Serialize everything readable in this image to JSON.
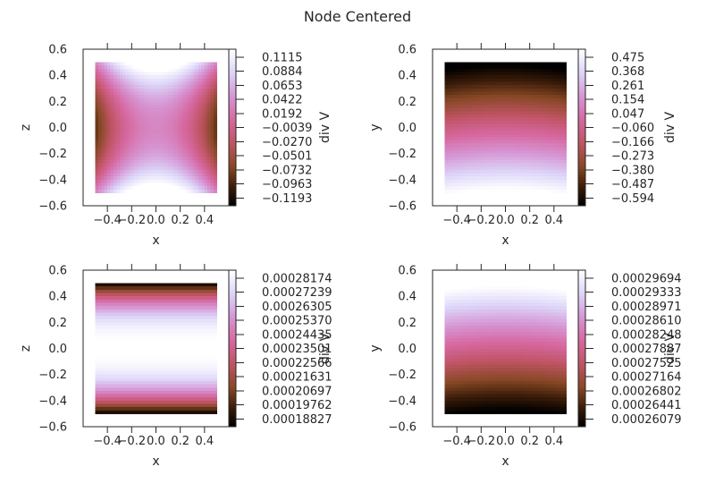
{
  "chart_data": {
    "title": "Node Centered",
    "colormap": "cubehelix",
    "panels": [
      {
        "type": "heatmap",
        "xlabel": "x",
        "ylabel": "z",
        "xlim": [
          -0.6,
          0.6
        ],
        "ylim": [
          -0.6,
          0.6
        ],
        "xticks": [
          -0.4,
          -0.2,
          0.0,
          0.2,
          0.4
        ],
        "xtick_labels": [
          "−0.4",
          "−0.2",
          "0.0",
          "0.2",
          "0.4"
        ],
        "yticks": [
          0.6,
          0.4,
          0.2,
          0.0,
          -0.2,
          -0.4,
          -0.6
        ],
        "ytick_labels": [
          "0.6",
          "0.4",
          "0.2",
          "0.0",
          "−0.2",
          "−0.4",
          "−0.6"
        ],
        "data_extent": [
          -0.5,
          0.5,
          -0.5,
          0.5
        ],
        "pattern": "saddle",
        "colorbar": {
          "label": "div V",
          "vmin": -0.1193,
          "vmax": 0.1115,
          "tick_labels": [
            "0.1115",
            "0.0884",
            "0.0653",
            "0.0422",
            "0.0192",
            "−0.0039",
            "−0.0270",
            "−0.0501",
            "−0.0732",
            "−0.0963",
            "−0.1193"
          ]
        }
      },
      {
        "type": "heatmap",
        "xlabel": "x",
        "ylabel": "y",
        "xlim": [
          -0.6,
          0.6
        ],
        "ylim": [
          -0.6,
          0.6
        ],
        "xticks": [
          -0.4,
          -0.2,
          0.0,
          0.2,
          0.4
        ],
        "xtick_labels": [
          "−0.4",
          "−0.2",
          "0.0",
          "0.2",
          "0.4"
        ],
        "yticks": [
          0.6,
          0.4,
          0.2,
          0.0,
          -0.2,
          -0.4,
          -0.6
        ],
        "ytick_labels": [
          "0.6",
          "0.4",
          "0.2",
          "0.0",
          "−0.2",
          "−0.4",
          "−0.6"
        ],
        "data_extent": [
          -0.5,
          0.5,
          -0.5,
          0.5
        ],
        "pattern": "top-low",
        "colorbar": {
          "label": "div V",
          "vmin": -0.594,
          "vmax": 0.475,
          "tick_labels": [
            "0.475",
            "0.368",
            "0.261",
            "0.154",
            "0.047",
            "−0.060",
            "−0.166",
            "−0.273",
            "−0.380",
            "−0.487",
            "−0.594"
          ]
        }
      },
      {
        "type": "heatmap",
        "xlabel": "x",
        "ylabel": "z",
        "xlim": [
          -0.6,
          0.6
        ],
        "ylim": [
          -0.6,
          0.6
        ],
        "xticks": [
          -0.4,
          -0.2,
          0.0,
          0.2,
          0.4
        ],
        "xtick_labels": [
          "−0.4",
          "−0.2",
          "0.0",
          "0.2",
          "0.4"
        ],
        "yticks": [
          0.6,
          0.4,
          0.2,
          0.0,
          -0.2,
          -0.4,
          -0.6
        ],
        "ytick_labels": [
          "0.6",
          "0.4",
          "0.2",
          "0.0",
          "−0.2",
          "−0.4",
          "−0.6"
        ],
        "data_extent": [
          -0.5,
          0.5,
          -0.5,
          0.5
        ],
        "pattern": "bands",
        "colorbar": {
          "label": "div V",
          "vmin": 0.00018827,
          "vmax": 0.00028174,
          "tick_labels": [
            "0.00028174",
            "0.00027239",
            "0.00026305",
            "0.00025370",
            "0.00024435",
            "0.00023501",
            "0.00022566",
            "0.00021631",
            "0.00020697",
            "0.00019762",
            "0.00018827"
          ]
        }
      },
      {
        "type": "heatmap",
        "xlabel": "x",
        "ylabel": "y",
        "xlim": [
          -0.6,
          0.6
        ],
        "ylim": [
          -0.6,
          0.6
        ],
        "xticks": [
          -0.4,
          -0.2,
          0.0,
          0.2,
          0.4
        ],
        "xtick_labels": [
          "−0.4",
          "−0.2",
          "0.0",
          "0.2",
          "0.4"
        ],
        "yticks": [
          0.6,
          0.4,
          0.2,
          0.0,
          -0.2,
          -0.4,
          -0.6
        ],
        "ytick_labels": [
          "0.6",
          "0.4",
          "0.2",
          "0.0",
          "−0.2",
          "−0.4",
          "−0.6"
        ],
        "data_extent": [
          -0.5,
          0.5,
          -0.5,
          0.5
        ],
        "pattern": "bottom-low",
        "colorbar": {
          "label": "div V",
          "vmin": 0.00026079,
          "vmax": 0.00029694,
          "tick_labels": [
            "0.00029694",
            "0.00029333",
            "0.00028971",
            "0.00028610",
            "0.00028248",
            "0.00027887",
            "0.00027525",
            "0.00027164",
            "0.00026802",
            "0.00026441",
            "0.00026079"
          ]
        }
      }
    ]
  }
}
